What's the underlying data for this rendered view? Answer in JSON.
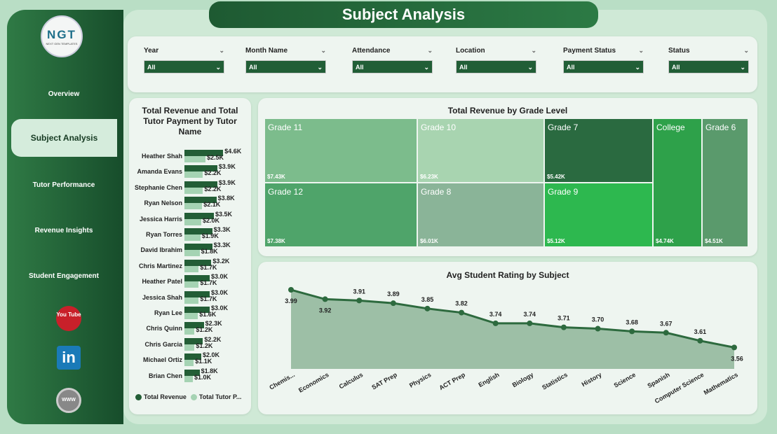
{
  "header": {
    "title": "Subject Analysis"
  },
  "logo": {
    "text": "NGT",
    "subtitle": "NEXT GEN TEMPLATES"
  },
  "sidebar": {
    "items": [
      {
        "label": "Overview"
      },
      {
        "label": "Subject Analysis",
        "active": true
      },
      {
        "label": "Tutor Performance"
      },
      {
        "label": "Revenue Insights"
      },
      {
        "label": "Student Engagement"
      }
    ],
    "social": [
      {
        "icon": "youtube-icon",
        "label": "You Tube"
      },
      {
        "icon": "linkedin-icon",
        "label": "in"
      },
      {
        "icon": "globe-icon",
        "label": "WWW"
      }
    ]
  },
  "filters": [
    {
      "label": "Year",
      "value": "All"
    },
    {
      "label": "Month Name",
      "value": "All"
    },
    {
      "label": "Attendance",
      "value": "All"
    },
    {
      "label": "Location",
      "value": "All"
    },
    {
      "label": "Payment Status",
      "value": "All"
    },
    {
      "label": "Status",
      "value": "All"
    }
  ],
  "colors": {
    "dark": "#235e36",
    "light": "#a5d3b3",
    "accent": "#2d6a3e"
  },
  "chart_data": [
    {
      "type": "bar",
      "title": "Total Revenue and Total Tutor Payment by Tutor Name",
      "orientation": "horizontal",
      "legend": "bottom",
      "categories": [
        "Heather Shah",
        "Amanda Evans",
        "Stephanie Chen",
        "Ryan Nelson",
        "Jessica Harris",
        "Ryan Torres",
        "David Ibrahim",
        "Chris Martinez",
        "Heather Patel",
        "Jessica Shah",
        "Ryan Lee",
        "Chris Quinn",
        "Chris Garcia",
        "Michael Ortiz",
        "Brian Chen"
      ],
      "series": [
        {
          "name": "Total Revenue",
          "legend_label": "Total Revenue",
          "values": [
            4.6,
            3.9,
            3.9,
            3.8,
            3.5,
            3.3,
            3.3,
            3.2,
            3.0,
            3.0,
            3.0,
            2.3,
            2.2,
            2.0,
            1.8
          ],
          "labels": [
            "$4.6K",
            "$3.9K",
            "$3.9K",
            "$3.8K",
            "$3.5K",
            "$3.3K",
            "$3.3K",
            "$3.2K",
            "$3.0K",
            "$3.0K",
            "$3.0K",
            "$2.3K",
            "$2.2K",
            "$2.0K",
            "$1.8K"
          ]
        },
        {
          "name": "Total Tutor Payment",
          "legend_label": "Total Tutor P...",
          "values": [
            2.5,
            2.2,
            2.2,
            2.1,
            2.0,
            1.9,
            1.8,
            1.7,
            1.7,
            1.7,
            1.6,
            1.2,
            1.2,
            1.1,
            1.0
          ],
          "labels": [
            "$2.5K",
            "$2.2K",
            "$2.2K",
            "$2.1K",
            "$2.0K",
            "$1.9K",
            "$1.8K",
            "$1.7K",
            "$1.7K",
            "$1.7K",
            "$1.6K",
            "$1.2K",
            "$1.2K",
            "$1.1K",
            "$1.0K"
          ]
        }
      ]
    },
    {
      "type": "treemap",
      "title": "Total Revenue by Grade Level",
      "items": [
        {
          "label": "Grade 11",
          "value": "$7.43K",
          "color": "#7cbc8c"
        },
        {
          "label": "Grade 12",
          "value": "$7.38K",
          "color": "#4fa46a"
        },
        {
          "label": "Grade 10",
          "value": "$6.23K",
          "color": "#a8d4b0"
        },
        {
          "label": "Grade 8",
          "value": "$6.01K",
          "color": "#8ab498"
        },
        {
          "label": "Grade 7",
          "value": "$5.42K",
          "color": "#2a6a40"
        },
        {
          "label": "Grade 9",
          "value": "$5.12K",
          "color": "#2db84f"
        },
        {
          "label": "College",
          "value": "$4.74K",
          "color": "#2ea14a"
        },
        {
          "label": "Grade 6",
          "value": "$4.51K",
          "color": "#5a9a6c"
        }
      ]
    },
    {
      "type": "area",
      "title": "Avg Student Rating by Subject",
      "categories": [
        "Chemis...",
        "Economics",
        "Calculus",
        "SAT Prep",
        "Physics",
        "ACT Prep",
        "English",
        "Biology",
        "Statistics",
        "History",
        "Science",
        "Spanish",
        "Computer Science",
        "Mathematics"
      ],
      "values": [
        3.99,
        3.92,
        3.91,
        3.89,
        3.85,
        3.82,
        3.74,
        3.74,
        3.71,
        3.7,
        3.68,
        3.67,
        3.61,
        3.56
      ],
      "labels": [
        "3.99",
        "3.92",
        "3.91",
        "3.89",
        "3.85",
        "3.82",
        "3.74",
        "3.74",
        "3.71",
        "3.70",
        "3.68",
        "3.67",
        "3.61",
        "3.56"
      ]
    }
  ]
}
